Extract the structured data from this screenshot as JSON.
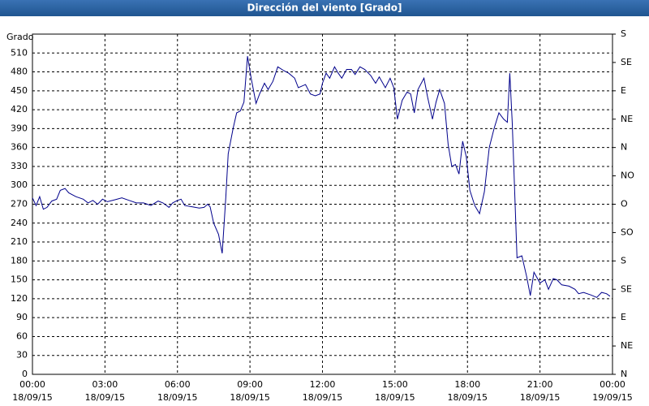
{
  "chart_data": {
    "type": "line",
    "title": "Dirección del viento [Grado]",
    "y_label": "Grado",
    "xlim": [
      0,
      24
    ],
    "xticks": [
      {
        "value": 0,
        "label": "00:00"
      },
      {
        "value": 3,
        "label": "03:00"
      },
      {
        "value": 6,
        "label": "06:00"
      },
      {
        "value": 9,
        "label": "09:00"
      },
      {
        "value": 12,
        "label": "12:00"
      },
      {
        "value": 15,
        "label": "15:00"
      },
      {
        "value": 18,
        "label": "18:00"
      },
      {
        "value": 21,
        "label": "21:00"
      },
      {
        "value": 24,
        "label": "00:00"
      }
    ],
    "xtick_dates": [
      "18/09/15",
      "18/09/15",
      "18/09/15",
      "18/09/15",
      "18/09/15",
      "18/09/15",
      "18/09/15",
      "18/09/15",
      "19/09/15"
    ],
    "ylim": [
      0,
      540
    ],
    "yticks": [
      0,
      30,
      60,
      90,
      120,
      150,
      180,
      210,
      240,
      270,
      300,
      330,
      360,
      390,
      420,
      450,
      480,
      510
    ],
    "y2lim": [
      0,
      540
    ],
    "y2ticks": [
      {
        "value": 0,
        "label": "N"
      },
      {
        "value": 45,
        "label": "NE"
      },
      {
        "value": 90,
        "label": "E"
      },
      {
        "value": 135,
        "label": "SE"
      },
      {
        "value": 180,
        "label": "S"
      },
      {
        "value": 225,
        "label": "SO"
      },
      {
        "value": 270,
        "label": "O"
      },
      {
        "value": 315,
        "label": "NO"
      },
      {
        "value": 360,
        "label": "N"
      },
      {
        "value": 405,
        "label": "NE"
      },
      {
        "value": 450,
        "label": "E"
      },
      {
        "value": 495,
        "label": "SE"
      },
      {
        "value": 540,
        "label": "S"
      }
    ],
    "grid": true,
    "series": [
      {
        "color": "#00008b",
        "x": [
          0.0,
          0.15,
          0.3,
          0.45,
          0.6,
          0.8,
          1.0,
          1.15,
          1.35,
          1.5,
          1.8,
          2.1,
          2.3,
          2.5,
          2.7,
          2.9,
          3.1,
          3.4,
          3.7,
          4.0,
          4.3,
          4.6,
          4.9,
          5.2,
          5.4,
          5.65,
          5.8,
          6.0,
          6.15,
          6.3,
          6.6,
          6.9,
          7.1,
          7.25,
          7.35,
          7.5,
          7.7,
          7.85,
          8.0,
          8.1,
          8.3,
          8.45,
          8.6,
          8.75,
          8.9,
          9.05,
          9.25,
          9.4,
          9.6,
          9.75,
          9.95,
          10.15,
          10.4,
          10.6,
          10.85,
          11.0,
          11.3,
          11.5,
          11.7,
          11.9,
          12.0,
          12.15,
          12.3,
          12.5,
          12.65,
          12.8,
          13.0,
          13.2,
          13.35,
          13.55,
          13.75,
          14.0,
          14.2,
          14.35,
          14.6,
          14.8,
          14.95,
          15.1,
          15.3,
          15.5,
          15.65,
          15.8,
          15.95,
          16.2,
          16.35,
          16.55,
          16.7,
          16.85,
          17.05,
          17.2,
          17.35,
          17.5,
          17.65,
          17.8,
          17.95,
          18.1,
          18.3,
          18.5,
          18.7,
          18.9,
          19.1,
          19.3,
          19.5,
          19.65,
          19.75,
          19.85,
          20.0,
          20.05,
          20.25,
          20.45,
          20.6,
          20.75,
          21.0,
          21.2,
          21.35,
          21.55,
          21.7,
          21.9,
          22.2,
          22.45,
          22.6,
          22.8,
          23.1,
          23.35,
          23.55,
          23.75,
          23.9
        ],
        "values": [
          280,
          268,
          282,
          262,
          265,
          275,
          278,
          292,
          295,
          288,
          282,
          278,
          272,
          276,
          270,
          278,
          274,
          277,
          280,
          276,
          272,
          272,
          268,
          275,
          272,
          265,
          272,
          276,
          278,
          268,
          266,
          264,
          265,
          270,
          266,
          240,
          222,
          192,
          280,
          350,
          390,
          415,
          418,
          432,
          505,
          470,
          430,
          445,
          462,
          452,
          465,
          488,
          482,
          478,
          470,
          455,
          460,
          445,
          442,
          445,
          462,
          478,
          470,
          488,
          478,
          470,
          484,
          484,
          476,
          488,
          484,
          474,
          462,
          472,
          455,
          470,
          455,
          405,
          435,
          448,
          445,
          415,
          452,
          470,
          440,
          405,
          432,
          452,
          430,
          365,
          330,
          333,
          318,
          370,
          345,
          292,
          268,
          255,
          290,
          360,
          390,
          415,
          405,
          400,
          478,
          400,
          240,
          185,
          188,
          155,
          125,
          162,
          145,
          150,
          135,
          152,
          150,
          142,
          140,
          135,
          128,
          130,
          126,
          122,
          130,
          128,
          124
        ]
      }
    ]
  }
}
